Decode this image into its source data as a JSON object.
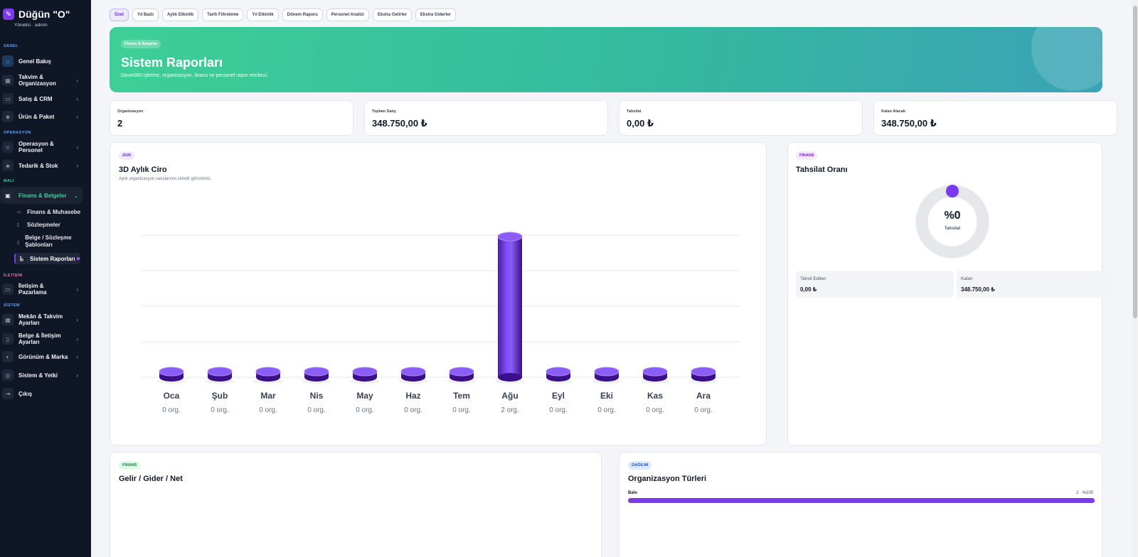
{
  "brand": {
    "title": "Düğün \"O\"",
    "user": "Yönetici · admin"
  },
  "sidebar": {
    "sections": {
      "genel": "GENEL",
      "operasyon": "OPERASYON",
      "mali": "MALİ",
      "iletisim": "İLETİŞİM",
      "sistem": "SİSTEM"
    },
    "items": [
      {
        "label": "Genel Bakış",
        "icon": "home-icon"
      },
      {
        "label": "Takvim & Organizasyon",
        "icon": "calendar-icon"
      },
      {
        "label": "Satış & CRM",
        "icon": "chat-icon"
      },
      {
        "label": "Ürün & Paket",
        "icon": "box-icon"
      },
      {
        "label": "Operasyon & Personel",
        "icon": "users-icon"
      },
      {
        "label": "Tedarik & Stok",
        "icon": "cube-icon"
      },
      {
        "label": "Finans & Belgeler",
        "icon": "wallet-icon"
      },
      {
        "label": "İletişim & Pazarlama",
        "icon": "message-icon"
      },
      {
        "label": "Mekân & Takvim Ayarları",
        "icon": "calendar-settings-icon"
      },
      {
        "label": "Belge & İletişim Ayarları",
        "icon": "document-icon"
      },
      {
        "label": "Görünüm & Marka",
        "icon": "palette-icon"
      },
      {
        "label": "Sistem & Yetki",
        "icon": "shield-icon"
      },
      {
        "label": "Çıkış",
        "icon": "logout-icon"
      }
    ],
    "sub_items": [
      {
        "label": "Finans & Muhasebe"
      },
      {
        "label": "Sözleşmeler"
      },
      {
        "label": "Belge / Sözleşme Şablonları"
      },
      {
        "label": "Sistem Raporları"
      }
    ]
  },
  "tabs": [
    "Özet",
    "Yıl Bazlı",
    "Aylık Etkinlik",
    "Tarih Filtreleme",
    "Yıl Etkinlik",
    "Dönem Raporu",
    "Personel Analizi",
    "Ekstra Gelirler",
    "Ekstra Giderler"
  ],
  "hero": {
    "badge": "Finans & Belgeler",
    "title": "Sistem Raporları",
    "subtitle": "Davet360 işletme, organizasyon, finans ve personel rapor merkezi."
  },
  "stats": [
    {
      "label": "Organizasyon",
      "value": "2"
    },
    {
      "label": "Toplam Satış",
      "value": "348.750,00 ₺"
    },
    {
      "label": "Tahsilat",
      "value": "0,00 ₺"
    },
    {
      "label": "Kalan Alacak",
      "value": "348.750,00 ₺"
    }
  ],
  "monthly": {
    "badge": "2026",
    "title": "3D Aylık Ciro",
    "subtitle": "Aylık organizasyon satışlarının silindir görünümü."
  },
  "chart_data": {
    "type": "bar",
    "title": "3D Aylık Ciro",
    "categories": [
      "Oca",
      "Şub",
      "Mar",
      "Nis",
      "May",
      "Haz",
      "Tem",
      "Ağu",
      "Eyl",
      "Eki",
      "Kas",
      "Ara"
    ],
    "values": [
      0,
      0,
      0,
      0,
      0,
      0,
      0,
      348750,
      0,
      0,
      0,
      0
    ],
    "counts": [
      "0 org.",
      "0 org.",
      "0 org.",
      "0 org.",
      "0 org.",
      "0 org.",
      "0 org.",
      "2 org.",
      "0 org.",
      "0 org.",
      "0 org.",
      "0 org."
    ],
    "ylim": [
      0,
      348750
    ],
    "grid": true,
    "color": "#6d28d9"
  },
  "collection": {
    "badge": "FİNANS",
    "title": "Tahsilat Oranı",
    "percent_label": "%0",
    "percent": 0,
    "center_label": "Tahsilat",
    "collected_label": "Tahsil Edilen",
    "collected_value": "0,00 ₺",
    "remaining_label": "Kalan",
    "remaining_value": "348.750,00 ₺"
  },
  "income": {
    "badge": "FİNANS",
    "title": "Gelir / Gider / Net"
  },
  "distribution": {
    "badge": "DAĞILIM",
    "title": "Organizasyon Türleri",
    "rows": [
      {
        "label": "Balo",
        "value": "2 · %100",
        "fraction": 1.0
      }
    ]
  },
  "colors": {
    "accent": "#7c3aed",
    "success": "#34d399",
    "sidebar": "#0f1626"
  }
}
